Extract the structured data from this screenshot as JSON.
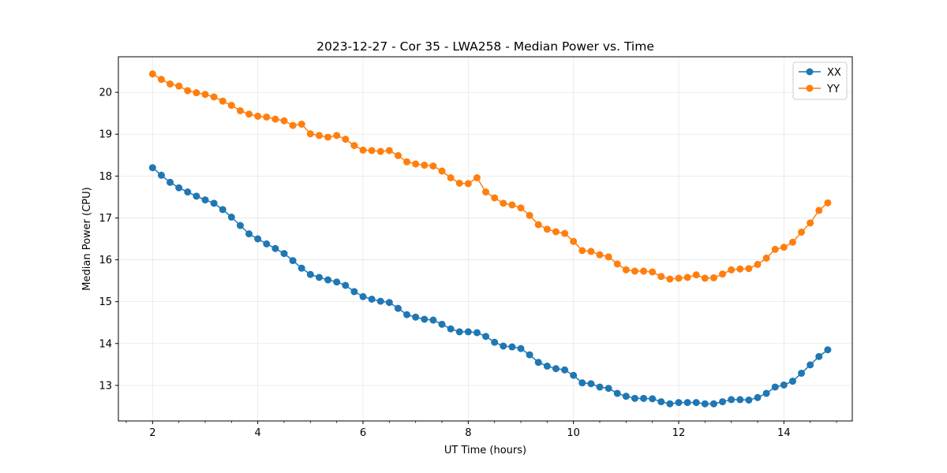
{
  "chart_data": {
    "type": "line",
    "title": "2023-12-27 - Cor 35 - LWA258 - Median Power vs. Time",
    "xlabel": "UT Time (hours)",
    "ylabel": "Median Power (CPU)",
    "xlim": [
      1.35,
      15.3
    ],
    "ylim": [
      12.15,
      20.85
    ],
    "xticks": [
      2,
      4,
      6,
      8,
      10,
      12,
      14
    ],
    "xticklabels": [
      "2",
      "4",
      "6",
      "8",
      "10",
      "12",
      "14"
    ],
    "yticks": [
      13,
      14,
      15,
      16,
      17,
      18,
      19,
      20
    ],
    "yticklabels": [
      "13",
      "14",
      "15",
      "16",
      "17",
      "18",
      "19",
      "20"
    ],
    "grid": true,
    "legend_position": "top-right",
    "x": [
      2.0,
      2.1667,
      2.3333,
      2.5,
      2.6667,
      2.8333,
      3.0,
      3.1667,
      3.3333,
      3.5,
      3.6667,
      3.8333,
      4.0,
      4.1667,
      4.3333,
      4.5,
      4.6667,
      4.8333,
      5.0,
      5.1667,
      5.3333,
      5.5,
      5.6667,
      5.8333,
      6.0,
      6.1667,
      6.3333,
      6.5,
      6.6667,
      6.8333,
      7.0,
      7.1667,
      7.3333,
      7.5,
      7.6667,
      7.8333,
      8.0,
      8.1667,
      8.3333,
      8.5,
      8.6667,
      8.8333,
      9.0,
      9.1667,
      9.3333,
      9.5,
      9.6667,
      9.8333,
      10.0,
      10.1667,
      10.3333,
      10.5,
      10.6667,
      10.8333,
      11.0,
      11.1667,
      11.3333,
      11.5,
      11.6667,
      11.8333,
      12.0,
      12.1667,
      12.3333,
      12.5,
      12.6667,
      12.8333,
      13.0,
      13.1667,
      13.3333,
      13.5,
      13.6667,
      13.8333,
      14.0,
      14.1667,
      14.3333,
      14.5,
      14.6667,
      14.8333
    ],
    "series": [
      {
        "name": "XX",
        "color": "#1f77b4",
        "values": [
          18.2,
          18.02,
          17.85,
          17.72,
          17.62,
          17.52,
          17.43,
          17.35,
          17.2,
          17.02,
          16.82,
          16.62,
          16.5,
          16.38,
          16.27,
          16.15,
          15.98,
          15.8,
          15.65,
          15.58,
          15.52,
          15.47,
          15.39,
          15.24,
          15.12,
          15.06,
          15.01,
          14.98,
          14.84,
          14.69,
          14.63,
          14.58,
          14.56,
          14.46,
          14.35,
          14.28,
          14.28,
          14.26,
          14.17,
          14.03,
          13.94,
          13.92,
          13.88,
          13.73,
          13.55,
          13.46,
          13.4,
          13.37,
          13.24,
          13.06,
          13.04,
          12.96,
          12.93,
          12.81,
          12.74,
          12.69,
          12.69,
          12.68,
          12.61,
          12.56,
          12.59,
          12.59,
          12.59,
          12.56,
          12.56,
          12.61,
          12.66,
          12.66,
          12.65,
          12.71,
          12.81,
          12.96,
          13.01,
          13.1,
          13.29,
          13.49,
          13.69,
          13.85
        ]
      },
      {
        "name": "YY",
        "color": "#ff7f0e",
        "values": [
          20.44,
          20.31,
          20.2,
          20.15,
          20.04,
          19.99,
          19.95,
          19.89,
          19.79,
          19.69,
          19.56,
          19.48,
          19.43,
          19.41,
          19.36,
          19.32,
          19.21,
          19.24,
          19.01,
          18.97,
          18.93,
          18.97,
          18.88,
          18.73,
          18.62,
          18.61,
          18.59,
          18.61,
          18.49,
          18.34,
          18.29,
          18.26,
          18.24,
          18.12,
          17.96,
          17.83,
          17.82,
          17.96,
          17.62,
          17.48,
          17.35,
          17.31,
          17.24,
          17.06,
          16.84,
          16.73,
          16.67,
          16.63,
          16.44,
          16.22,
          16.2,
          16.12,
          16.07,
          15.9,
          15.76,
          15.73,
          15.73,
          15.71,
          15.6,
          15.54,
          15.56,
          15.58,
          15.64,
          15.56,
          15.57,
          15.66,
          15.76,
          15.78,
          15.79,
          15.89,
          16.04,
          16.25,
          16.3,
          16.42,
          16.66,
          16.88,
          17.18,
          17.36
        ]
      }
    ]
  }
}
